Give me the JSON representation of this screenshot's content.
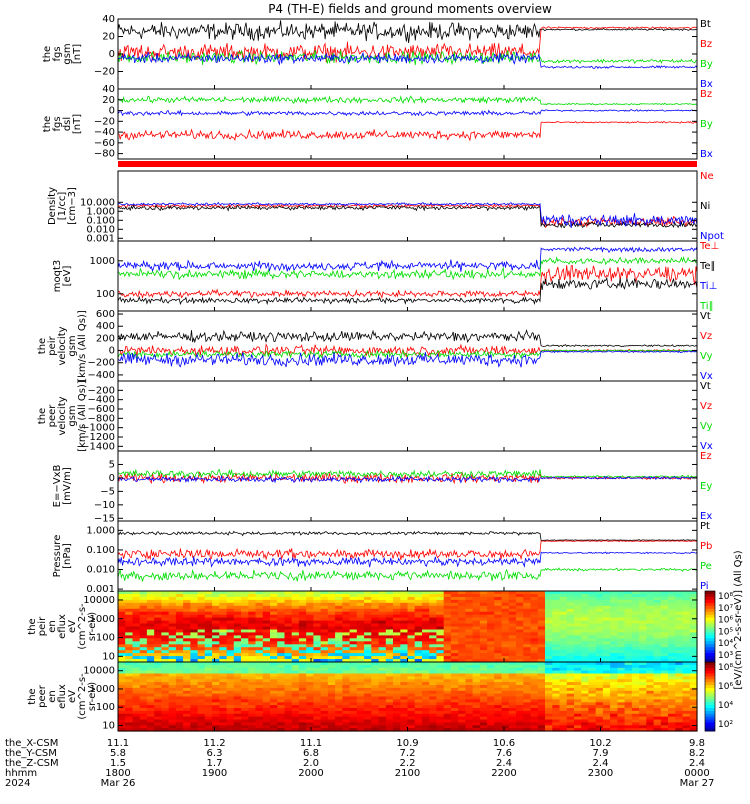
{
  "title": "P4 (TH-E) fields and ground moments overview",
  "colors": {
    "black": "#000000",
    "red": "#ff0000",
    "green": "#00dd00",
    "blue": "#0000ff"
  },
  "chart_data": [
    {
      "type": "line",
      "ylabel": [
        "the",
        "fgs",
        "gsm",
        "[nT]"
      ],
      "ylim": [
        -40,
        40
      ],
      "yticks": [
        "40",
        "20",
        "0",
        "−20"
      ],
      "ytickvals": [
        40,
        20,
        0,
        -20
      ],
      "series": [
        {
          "name": "Bt",
          "color": "#000000"
        },
        {
          "name": "Bz",
          "color": "#ff0000"
        },
        {
          "name": "By",
          "color": "#00dd00"
        },
        {
          "name": "Bx",
          "color": "#0000ff"
        }
      ]
    },
    {
      "type": "line",
      "ylabel": [
        "the",
        "fgs",
        "dsl",
        "[nT]"
      ],
      "ylim": [
        -90,
        40
      ],
      "yticks": [
        "40",
        "20",
        "0",
        "−20",
        "−40",
        "−60",
        "−80"
      ],
      "ytickvals": [
        40,
        20,
        0,
        -20,
        -40,
        -60,
        -80
      ],
      "series": [
        {
          "name": "Bz",
          "color": "#ff0000"
        },
        {
          "name": "By",
          "color": "#00dd00"
        },
        {
          "name": "Bx",
          "color": "#0000ff"
        }
      ]
    },
    {
      "type": "line",
      "ylabel": [
        "Density",
        "[1/cc]",
        "[cm−3]"
      ],
      "ylim": [
        0.0005,
        30000
      ],
      "log": true,
      "yticks": [
        "10.000",
        "1.000",
        "0.100",
        "0.010",
        "0.001"
      ],
      "ytickvals": [
        10,
        1,
        0.1,
        0.01,
        0.001
      ],
      "series": [
        {
          "name": "Ne",
          "color": "#ff0000"
        },
        {
          "name": "Ni",
          "color": "#000000"
        },
        {
          "name": "Npot",
          "color": "#0000ff"
        }
      ]
    },
    {
      "type": "line",
      "ylabel": [
        "moqt3",
        "[eV]"
      ],
      "ylim": [
        30,
        4000
      ],
      "log": true,
      "yticks": [
        "1000",
        "100"
      ],
      "ytickvals": [
        1000,
        100
      ],
      "series": [
        {
          "name": "Te⊥",
          "color": "#ff0000"
        },
        {
          "name": "Te∥",
          "color": "#000000"
        },
        {
          "name": "Ti⊥",
          "color": "#0000ff"
        },
        {
          "name": "Ti∥",
          "color": "#00dd00"
        }
      ]
    },
    {
      "type": "line",
      "ylabel": [
        "the",
        "peir",
        "velocity",
        "gsm",
        "[km/s (All Qs)]"
      ],
      "ylim": [
        -500,
        650
      ],
      "yticks": [
        "600",
        "400",
        "200",
        "0",
        "−200",
        "−400"
      ],
      "ytickvals": [
        600,
        400,
        200,
        0,
        -200,
        -400
      ],
      "series": [
        {
          "name": "Vt",
          "color": "#000000"
        },
        {
          "name": "Vz",
          "color": "#ff0000"
        },
        {
          "name": "Vy",
          "color": "#00dd00"
        },
        {
          "name": "Vx",
          "color": "#0000ff"
        }
      ]
    },
    {
      "type": "line",
      "ylabel": [
        "the",
        "peer",
        "velocity",
        "gsm",
        "[km/s (All Qs)]"
      ],
      "ylim": [
        -1500,
        0
      ],
      "yticks": [
        "−200",
        "−400",
        "−600",
        "−800",
        "−1000",
        "−1200",
        "−1400"
      ],
      "ytickvals": [
        -200,
        -400,
        -600,
        -800,
        -1000,
        -1200,
        -1400
      ],
      "series": [
        {
          "name": "Vt",
          "color": "#000000"
        },
        {
          "name": "Vz",
          "color": "#ff0000"
        },
        {
          "name": "Vy",
          "color": "#00dd00"
        },
        {
          "name": "Vx",
          "color": "#0000ff"
        }
      ]
    },
    {
      "type": "line",
      "ylabel": [
        "E=−VxB",
        "[mV/m]"
      ],
      "ylim": [
        -16,
        10
      ],
      "yticks": [
        "5",
        "0",
        "−5",
        "−10",
        "−15"
      ],
      "ytickvals": [
        5,
        0,
        -5,
        -10,
        -15
      ],
      "series": [
        {
          "name": "Ez",
          "color": "#ff0000"
        },
        {
          "name": "Ey",
          "color": "#00dd00"
        },
        {
          "name": "Ex",
          "color": "#0000ff"
        }
      ]
    },
    {
      "type": "line",
      "ylabel": [
        "Pressure",
        "[nPa]"
      ],
      "ylim": [
        0.0008,
        3
      ],
      "log": true,
      "yticks": [
        "1.000",
        "0.100",
        "0.010",
        "0.001"
      ],
      "ytickvals": [
        1,
        0.1,
        0.01,
        0.001
      ],
      "series": [
        {
          "name": "Pt",
          "color": "#000000"
        },
        {
          "name": "Pb",
          "color": "#ff0000"
        },
        {
          "name": "Pe",
          "color": "#00dd00"
        },
        {
          "name": "Pi",
          "color": "#0000ff"
        }
      ]
    },
    {
      "type": "heatmap",
      "ylabel": [
        "the",
        "peir",
        "en",
        "eflux",
        "eV",
        "(cm^2-s-",
        "sr-eV)"
      ],
      "ylim": [
        5,
        30000
      ],
      "log": true,
      "yticks": [
        "10000",
        "1000",
        "100",
        "10"
      ],
      "ytickvals": [
        10000,
        1000,
        100,
        10
      ],
      "colorbar": {
        "labels": [
          "10⁸",
          "10⁷",
          "10⁶",
          "10⁵",
          "10⁴",
          "10³"
        ]
      }
    },
    {
      "type": "heatmap",
      "ylabel": [
        "the",
        "peer",
        "en",
        "eflux",
        "eV",
        "(cm^2-s-",
        "sr-eV)"
      ],
      "ylim": [
        5,
        30000
      ],
      "log": true,
      "yticks": [
        "10000",
        "1000",
        "100",
        "10"
      ],
      "ytickvals": [
        10000,
        1000,
        100,
        10
      ],
      "colorbar": {
        "labels": [
          "10⁸",
          "10⁶",
          "10⁴",
          "10²"
        ]
      }
    }
  ],
  "colorbar_title": "[eV/(cm^2-s-sr-eV)] (All Qs)",
  "xaxis": {
    "row_labels": [
      "the_X-CSM",
      "the_Y-CSM",
      "the_Z-CSM",
      "hhmm",
      "2024"
    ],
    "columns": [
      {
        "x": "11.1",
        "y": "5.8",
        "z": "1.5",
        "hhmm": "1800",
        "date": "Mar 26"
      },
      {
        "x": "11.2",
        "y": "6.3",
        "z": "1.7",
        "hhmm": "1900",
        "date": ""
      },
      {
        "x": "11.1",
        "y": "6.8",
        "z": "2.0",
        "hhmm": "2000",
        "date": ""
      },
      {
        "x": "10.9",
        "y": "7.2",
        "z": "2.2",
        "hhmm": "2100",
        "date": ""
      },
      {
        "x": "10.6",
        "y": "7.6",
        "z": "2.4",
        "hhmm": "2200",
        "date": ""
      },
      {
        "x": "10.2",
        "y": "7.9",
        "z": "2.4",
        "hhmm": "2300",
        "date": ""
      },
      {
        "x": "9.8",
        "y": "8.2",
        "z": "2.4",
        "hhmm": "0000",
        "date": "Mar 27"
      }
    ]
  }
}
